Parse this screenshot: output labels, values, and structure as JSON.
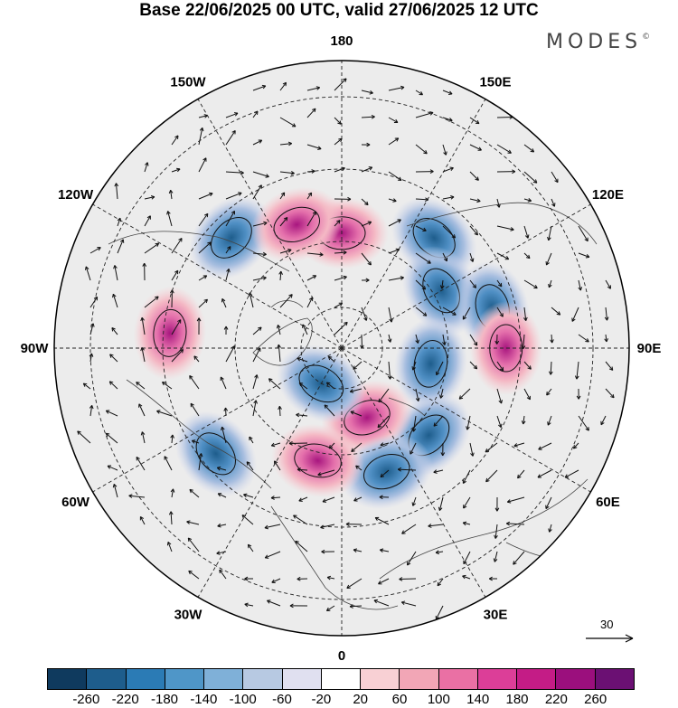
{
  "title": "Base 22/06/2025 00 UTC, valid 27/06/2025 12 UTC",
  "brand": "MODES",
  "brand_mark": "©",
  "longitude_labels": [
    "180",
    "150E",
    "120E",
    "90E",
    "60E",
    "30E",
    "0",
    "30W",
    "60W",
    "90W",
    "120W",
    "150W"
  ],
  "vector_reference": {
    "label": "30",
    "icon": "arrow-right-icon"
  },
  "colorbar": {
    "ticks": [
      "-260",
      "-220",
      "-180",
      "-140",
      "-100",
      "-60",
      "-20",
      "20",
      "60",
      "100",
      "140",
      "180",
      "220",
      "260"
    ],
    "colors": [
      "#0f3a5e",
      "#1e5d8c",
      "#2b7bb5",
      "#4f96c8",
      "#7fb0d8",
      "#b7c9e2",
      "#e0e0f0",
      "#ffffff",
      "#f8d0d4",
      "#f2a6b6",
      "#ea70a4",
      "#dc3e98",
      "#c41c86",
      "#9b0f7d",
      "#6b1073"
    ]
  },
  "anomalies": [
    {
      "lon": 180,
      "lat": 62,
      "sign": "positive"
    },
    {
      "lon": 140,
      "lat": 55,
      "sign": "negative"
    },
    {
      "lon": 120,
      "lat": 62,
      "sign": "negative"
    },
    {
      "lon": 105,
      "lat": 52,
      "sign": "negative"
    },
    {
      "lon": 80,
      "lat": 68,
      "sign": "negative"
    },
    {
      "lon": 90,
      "lat": 50,
      "sign": "positive"
    },
    {
      "lon": 45,
      "lat": 60,
      "sign": "negative"
    },
    {
      "lon": 20,
      "lat": 72,
      "sign": "positive"
    },
    {
      "lon": 20,
      "lat": 58,
      "sign": "negative"
    },
    {
      "lon": -12,
      "lat": 62,
      "sign": "positive"
    },
    {
      "lon": -50,
      "lat": 50,
      "sign": "negative"
    },
    {
      "lon": -95,
      "lat": 48,
      "sign": "positive"
    },
    {
      "lon": -135,
      "lat": 52,
      "sign": "negative"
    },
    {
      "lon": -160,
      "lat": 58,
      "sign": "positive"
    },
    {
      "lon": -30,
      "lat": 80,
      "sign": "negative"
    }
  ]
}
